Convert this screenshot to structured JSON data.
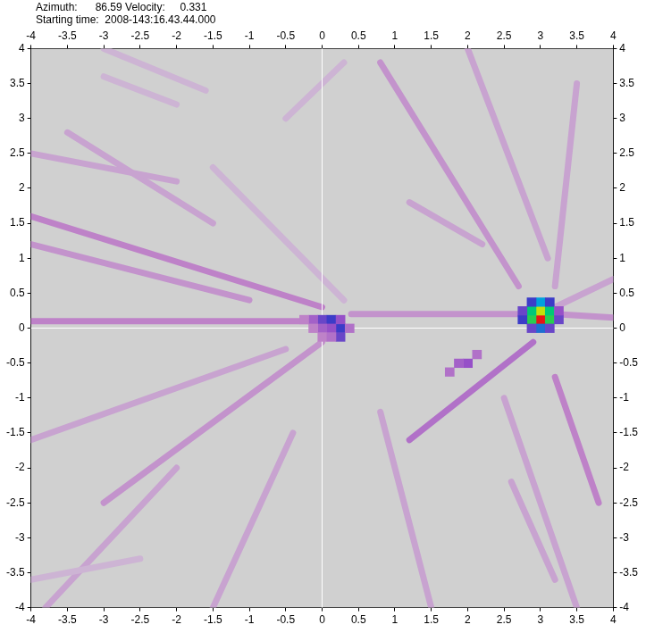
{
  "chart_data": {
    "type": "heatmap",
    "header": [
      "Azimuth:      86.59 Velocity:     0.331",
      "Starting time:  2008-143:16.43.44.000"
    ],
    "xlim": [
      -4,
      4
    ],
    "ylim": [
      -4,
      4
    ],
    "xticks": [
      -4,
      -3.5,
      -3,
      -2.5,
      -2,
      -1.5,
      -1,
      -0.5,
      0,
      0.5,
      1,
      1.5,
      2,
      2.5,
      3,
      3.5,
      4
    ],
    "yticks": [
      -4,
      -3.5,
      -3,
      -2.5,
      -2,
      -1.5,
      -1,
      -0.5,
      0,
      0.5,
      1,
      1.5,
      2,
      2.5,
      3,
      3.5,
      4
    ],
    "grid": false,
    "reference_lines": {
      "x": 0,
      "y": 0
    },
    "zlim": [
      0,
      1
    ],
    "cell_size": 0.125,
    "cells": [
      [
        3.0,
        0.125,
        1.0
      ],
      [
        3.0,
        0.25,
        0.9
      ],
      [
        2.875,
        0.125,
        0.8
      ],
      [
        3.125,
        0.125,
        0.8
      ],
      [
        2.875,
        0.25,
        0.75
      ],
      [
        3.125,
        0.25,
        0.75
      ],
      [
        3.0,
        0.375,
        0.65
      ],
      [
        3.0,
        0.0,
        0.6
      ],
      [
        2.875,
        0.375,
        0.55
      ],
      [
        3.125,
        0.375,
        0.55
      ],
      [
        2.875,
        0.0,
        0.5
      ],
      [
        3.125,
        0.0,
        0.5
      ],
      [
        2.75,
        0.125,
        0.55
      ],
      [
        3.25,
        0.125,
        0.5
      ],
      [
        2.75,
        0.25,
        0.5
      ],
      [
        3.25,
        0.25,
        0.45
      ],
      [
        0.0,
        0.125,
        0.5
      ],
      [
        0.125,
        0.125,
        0.55
      ],
      [
        0.25,
        0.0,
        0.55
      ],
      [
        0.25,
        -0.125,
        0.5
      ],
      [
        -0.125,
        0.125,
        0.4
      ],
      [
        0.125,
        0.0,
        0.45
      ],
      [
        0.0,
        0.0,
        0.4
      ],
      [
        0.25,
        0.125,
        0.45
      ],
      [
        -0.25,
        0.125,
        0.3
      ],
      [
        -0.125,
        0.0,
        0.3
      ],
      [
        0.375,
        0.0,
        0.35
      ],
      [
        0.0,
        -0.125,
        0.3
      ],
      [
        0.125,
        -0.125,
        0.35
      ],
      [
        2.0,
        -0.5,
        0.45
      ],
      [
        1.875,
        -0.5,
        0.4
      ],
      [
        1.75,
        -0.625,
        0.35
      ],
      [
        2.125,
        -0.375,
        0.35
      ]
    ],
    "streaks": [
      [
        -4,
        1.6,
        0,
        0.3,
        0.3
      ],
      [
        -4,
        1.2,
        -1,
        0.4,
        0.25
      ],
      [
        -3.5,
        2.8,
        -1.5,
        1.5,
        0.2
      ],
      [
        -4,
        0.1,
        0,
        0.1,
        0.3
      ],
      [
        0.4,
        0.2,
        2.8,
        0.2,
        0.25
      ],
      [
        3.2,
        0.2,
        4,
        0.15,
        0.25
      ],
      [
        3.2,
        0.3,
        4,
        0.7,
        0.2
      ],
      [
        0.8,
        3.8,
        2.7,
        0.6,
        0.25
      ],
      [
        2.0,
        4,
        3.1,
        1.0,
        0.2
      ],
      [
        3.5,
        3.5,
        3.2,
        0.6,
        0.2
      ],
      [
        3.2,
        -0.7,
        3.8,
        -2.5,
        0.3
      ],
      [
        2.9,
        -0.2,
        1.2,
        -1.6,
        0.35
      ],
      [
        0,
        -0.2,
        -3,
        -2.5,
        0.25
      ],
      [
        -0.5,
        -0.3,
        -4,
        -1.6,
        0.2
      ],
      [
        -2,
        -2,
        -3.8,
        -4,
        0.2
      ],
      [
        -0.4,
        -1.5,
        -1.5,
        -4,
        0.2
      ],
      [
        0.8,
        -1.2,
        1.5,
        -4,
        0.2
      ],
      [
        2.5,
        -1.0,
        3.5,
        -4,
        0.2
      ],
      [
        -1.6,
        3.4,
        -3,
        4,
        0.15
      ],
      [
        -0.5,
        3,
        0.3,
        3.8,
        0.15
      ],
      [
        1.2,
        1.8,
        2.2,
        1.2,
        0.2
      ],
      [
        -3,
        3.6,
        -2,
        3.2,
        0.15
      ],
      [
        0.3,
        0.4,
        -1.5,
        2.3,
        0.15
      ],
      [
        -4,
        -3.6,
        -2.5,
        -3.3,
        0.15
      ],
      [
        2.6,
        -2.2,
        3.2,
        -3.6,
        0.2
      ],
      [
        -4,
        2.5,
        -2,
        2.1,
        0.2
      ]
    ]
  }
}
